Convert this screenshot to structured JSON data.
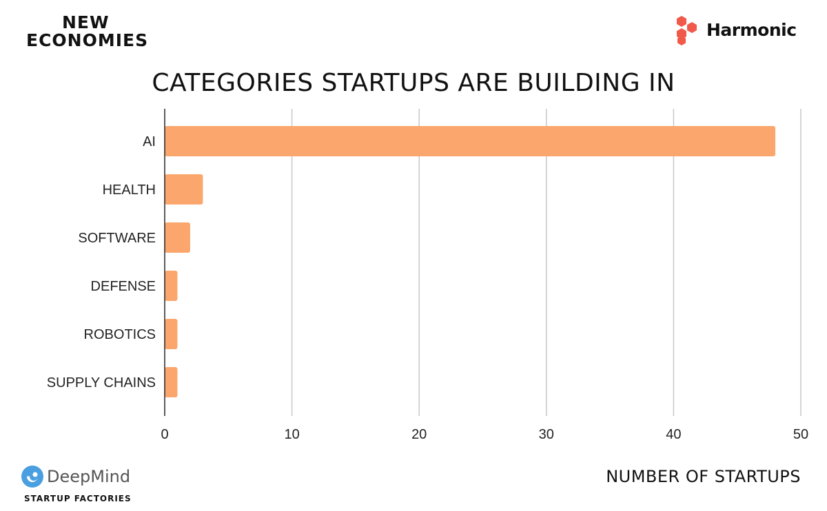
{
  "branding": {
    "top_left_line1": "NEW",
    "top_left_line2": "ECONOMIES",
    "top_right_name": "Harmonic",
    "bottom_left_name": "DeepMind",
    "bottom_left_sub": "STARTUP FACTORIES",
    "harmonic_color": "#f15a4a",
    "deepmind_color": "#4a9fe0"
  },
  "chart_data": {
    "type": "bar",
    "orientation": "horizontal",
    "title": "CATEGORIES STARTUPS ARE BUILDING IN",
    "xlabel": "NUMBER OF STARTUPS",
    "ylabel": "",
    "categories": [
      "AI",
      "HEALTH",
      "SOFTWARE",
      "DEFENSE",
      "ROBOTICS",
      "SUPPLY CHAINS"
    ],
    "values": [
      48,
      3,
      2,
      1,
      1,
      1
    ],
    "xlim": [
      0,
      50
    ],
    "xticks": [
      0,
      10,
      20,
      30,
      40,
      50
    ],
    "grid": "vertical",
    "bar_color": "#fba66c"
  }
}
